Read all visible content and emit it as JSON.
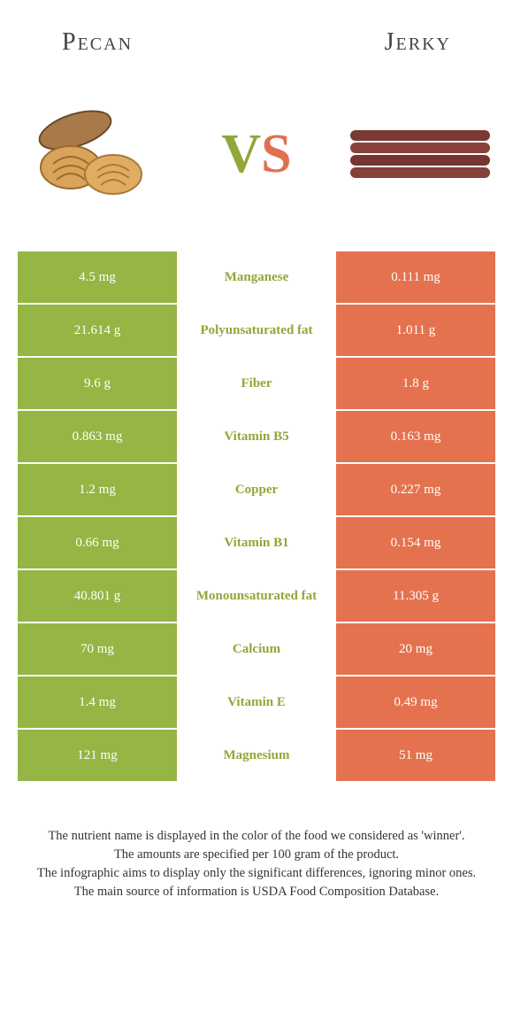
{
  "header": {
    "left_title": "Pecan",
    "right_title": "Jerky"
  },
  "vs": {
    "v": "V",
    "s": "S"
  },
  "colors": {
    "left_bg": "#95b544",
    "right_bg": "#e5724f",
    "left_text": "#8fa838",
    "right_text": "#e07050",
    "mid_winner_left": "#8fa838",
    "mid_winner_right": "#e07050"
  },
  "rows": [
    {
      "left": "4.5 mg",
      "label": "Manganese",
      "right": "0.111 mg",
      "winner": "left"
    },
    {
      "left": "21.614 g",
      "label": "Polyunsaturated fat",
      "right": "1.011 g",
      "winner": "left"
    },
    {
      "left": "9.6 g",
      "label": "Fiber",
      "right": "1.8 g",
      "winner": "left"
    },
    {
      "left": "0.863 mg",
      "label": "Vitamin B5",
      "right": "0.163 mg",
      "winner": "left"
    },
    {
      "left": "1.2 mg",
      "label": "Copper",
      "right": "0.227 mg",
      "winner": "left"
    },
    {
      "left": "0.66 mg",
      "label": "Vitamin B1",
      "right": "0.154 mg",
      "winner": "left"
    },
    {
      "left": "40.801 g",
      "label": "Monounsaturated fat",
      "right": "11.305 g",
      "winner": "left"
    },
    {
      "left": "70 mg",
      "label": "Calcium",
      "right": "20 mg",
      "winner": "left"
    },
    {
      "left": "1.4 mg",
      "label": "Vitamin E",
      "right": "0.49 mg",
      "winner": "left"
    },
    {
      "left": "121 mg",
      "label": "Magnesium",
      "right": "51 mg",
      "winner": "left"
    }
  ],
  "footer": {
    "line1": "The nutrient name is displayed in the color of the food we considered as 'winner'.",
    "line2": "The amounts are specified per 100 gram of the product.",
    "line3": "The infographic aims to display only the significant differences, ignoring minor ones.",
    "line4": "The main source of information is USDA Food Composition Database."
  }
}
